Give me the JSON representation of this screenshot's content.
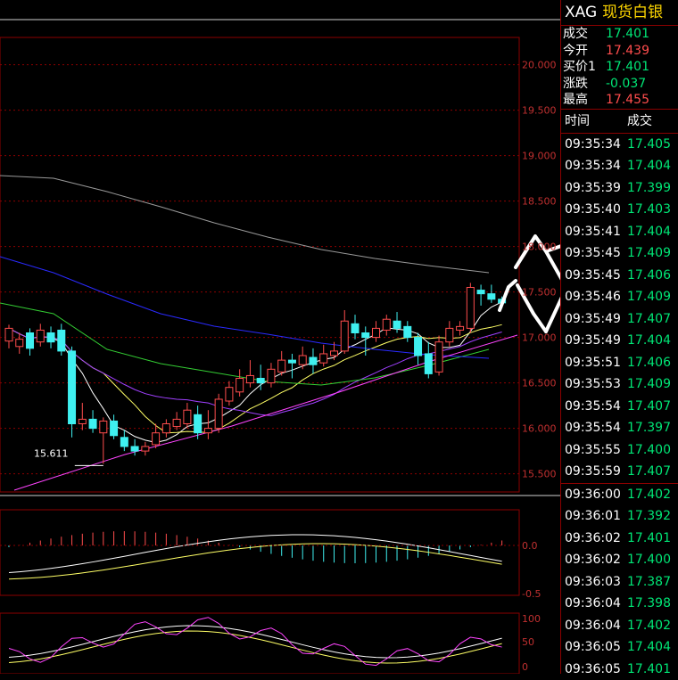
{
  "instrument": {
    "code": "XAG",
    "name": "现货白银"
  },
  "quote": [
    {
      "label": "成交",
      "value": "17.401",
      "color": "#00e676"
    },
    {
      "label": "今开",
      "value": "17.439",
      "color": "#ff4d4d"
    },
    {
      "label": "买价1",
      "value": "17.401",
      "color": "#00e676"
    },
    {
      "label": "涨跌",
      "value": "-0.037",
      "color": "#00e676"
    },
    {
      "label": "最高",
      "value": "17.455",
      "color": "#ff4d4d"
    }
  ],
  "ticks_header": {
    "time": "时间",
    "price": "成交"
  },
  "ticks": [
    {
      "time": "09:35:34",
      "price": "17.405"
    },
    {
      "time": "09:35:34",
      "price": "17.404"
    },
    {
      "time": "09:35:39",
      "price": "17.399"
    },
    {
      "time": "09:35:40",
      "price": "17.403"
    },
    {
      "time": "09:35:41",
      "price": "17.404"
    },
    {
      "time": "09:35:45",
      "price": "17.409"
    },
    {
      "time": "09:35:45",
      "price": "17.406"
    },
    {
      "time": "09:35:46",
      "price": "17.409"
    },
    {
      "time": "09:35:49",
      "price": "17.407"
    },
    {
      "time": "09:35:49",
      "price": "17.404"
    },
    {
      "time": "09:35:51",
      "price": "17.406"
    },
    {
      "time": "09:35:53",
      "price": "17.409"
    },
    {
      "time": "09:35:54",
      "price": "17.407"
    },
    {
      "time": "09:35:54",
      "price": "17.397"
    },
    {
      "time": "09:35:55",
      "price": "17.400"
    },
    {
      "time": "09:35:59",
      "price": "17.407"
    },
    {
      "time": "09:36:00",
      "price": "17.402"
    },
    {
      "time": "09:36:01",
      "price": "17.392"
    },
    {
      "time": "09:36:02",
      "price": "17.401"
    },
    {
      "time": "09:36:02",
      "price": "17.400"
    },
    {
      "time": "09:36:03",
      "price": "17.387"
    },
    {
      "time": "09:36:04",
      "price": "17.398"
    },
    {
      "time": "09:36:04",
      "price": "17.402"
    },
    {
      "time": "09:36:05",
      "price": "17.404"
    },
    {
      "time": "09:36:05",
      "price": "17.401"
    }
  ],
  "chart_data": [
    {
      "type": "candlestick",
      "y_axis_ticks": [
        "20.000",
        "19.500",
        "19.000",
        "18.500",
        "18.000",
        "17.500",
        "17.000",
        "16.500",
        "16.000",
        "15.500"
      ],
      "ylim": [
        15.3,
        20.3
      ],
      "low_annotation": "15.611",
      "candles": [
        [
          16.96,
          17.1,
          16.88,
          17.14
        ],
        [
          16.9,
          16.98,
          16.82,
          17.05
        ],
        [
          17.05,
          16.88,
          16.8,
          17.1
        ],
        [
          16.95,
          17.08,
          16.9,
          17.15
        ],
        [
          17.05,
          16.95,
          16.88,
          17.12
        ],
        [
          17.08,
          16.85,
          16.8,
          17.15
        ],
        [
          16.85,
          16.05,
          15.9,
          16.9
        ],
        [
          16.05,
          16.1,
          15.98,
          16.28
        ],
        [
          16.1,
          16.0,
          15.95,
          16.2
        ],
        [
          15.95,
          16.08,
          15.61,
          16.12
        ],
        [
          16.08,
          15.92,
          15.88,
          16.15
        ],
        [
          15.9,
          15.8,
          15.75,
          15.98
        ],
        [
          15.8,
          15.75,
          15.7,
          15.88
        ],
        [
          15.75,
          15.8,
          15.7,
          15.85
        ],
        [
          15.82,
          15.95,
          15.78,
          16.05
        ],
        [
          15.95,
          16.05,
          15.9,
          16.1
        ],
        [
          16.02,
          16.1,
          15.98,
          16.18
        ],
        [
          16.05,
          16.2,
          16.0,
          16.28
        ],
        [
          16.15,
          15.95,
          15.88,
          16.25
        ],
        [
          15.95,
          16.0,
          15.88,
          16.2
        ],
        [
          16.0,
          16.32,
          15.95,
          16.38
        ],
        [
          16.3,
          16.45,
          16.25,
          16.52
        ],
        [
          16.4,
          16.55,
          16.35,
          16.65
        ],
        [
          16.5,
          16.58,
          16.45,
          16.75
        ],
        [
          16.55,
          16.5,
          16.42,
          16.7
        ],
        [
          16.5,
          16.65,
          16.45,
          16.72
        ],
        [
          16.62,
          16.75,
          16.58,
          16.85
        ],
        [
          16.75,
          16.72,
          16.55,
          16.82
        ],
        [
          16.7,
          16.8,
          16.65,
          16.9
        ],
        [
          16.78,
          16.7,
          16.6,
          16.88
        ],
        [
          16.72,
          16.82,
          16.68,
          16.92
        ],
        [
          16.8,
          16.85,
          16.75,
          16.95
        ],
        [
          16.85,
          17.18,
          16.82,
          17.3
        ],
        [
          17.15,
          17.05,
          16.98,
          17.25
        ],
        [
          17.05,
          17.0,
          16.8,
          17.12
        ],
        [
          17.0,
          17.1,
          16.95,
          17.18
        ],
        [
          17.08,
          17.2,
          17.02,
          17.25
        ],
        [
          17.18,
          17.1,
          17.05,
          17.28
        ],
        [
          17.12,
          17.0,
          16.95,
          17.18
        ],
        [
          17.0,
          16.8,
          16.7,
          17.05
        ],
        [
          16.82,
          16.6,
          16.55,
          16.95
        ],
        [
          16.62,
          16.95,
          16.58,
          17.02
        ],
        [
          16.95,
          17.1,
          16.9,
          17.18
        ],
        [
          17.08,
          17.12,
          17.02,
          17.18
        ],
        [
          17.1,
          17.55,
          17.05,
          17.6
        ],
        [
          17.52,
          17.48,
          17.35,
          17.58
        ],
        [
          17.48,
          17.42,
          17.38,
          17.58
        ],
        [
          17.42,
          17.38,
          17.32,
          17.45
        ]
      ]
    },
    {
      "type": "line",
      "name": "",
      "y_axis_ticks": [
        "0.0",
        "-0.5"
      ]
    },
    {
      "type": "line",
      "name": "",
      "y_axis_ticks": [
        "100",
        "50",
        "0"
      ]
    }
  ],
  "colors": {
    "up": "#ff4d4d",
    "down": "#3ff0f0",
    "grid": "#8b0000",
    "axis_text": "#c03030"
  }
}
